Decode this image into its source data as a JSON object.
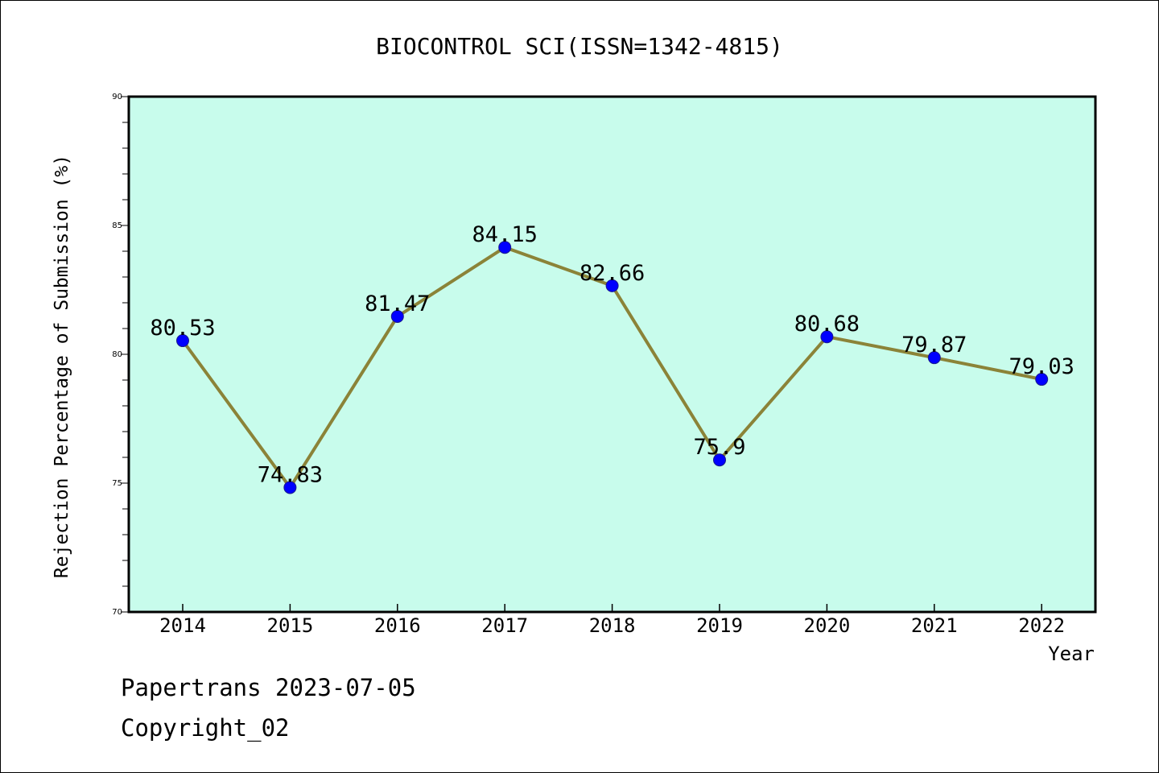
{
  "chart_data": {
    "type": "line",
    "title": "BIOCONTROL SCI(ISSN=1342-4815)",
    "xlabel": "Year",
    "ylabel": "Rejection Percentage of Submission (%)",
    "x": [
      "2014",
      "2015",
      "2016",
      "2017",
      "2018",
      "2019",
      "2020",
      "2021",
      "2022"
    ],
    "y_ticks": [
      "70",
      "75",
      "80",
      "85",
      "90"
    ],
    "ylim": [
      70,
      90
    ],
    "series": [
      {
        "values": [
          80.53,
          74.83,
          81.47,
          84.15,
          82.66,
          75.9,
          80.68,
          79.87,
          79.03
        ],
        "labels": [
          "80.53",
          "74.83",
          "81.47",
          "84.15",
          "82.66",
          "75.9",
          "80.68",
          "79.87",
          "79.03"
        ]
      }
    ],
    "grid": false,
    "colors": {
      "plot_background": "#c8fcec",
      "line": "#8b8338",
      "marker": "#0000ff"
    }
  },
  "footer": {
    "line1": "Papertrans 2023-07-05",
    "line2": "Copyright_02"
  }
}
